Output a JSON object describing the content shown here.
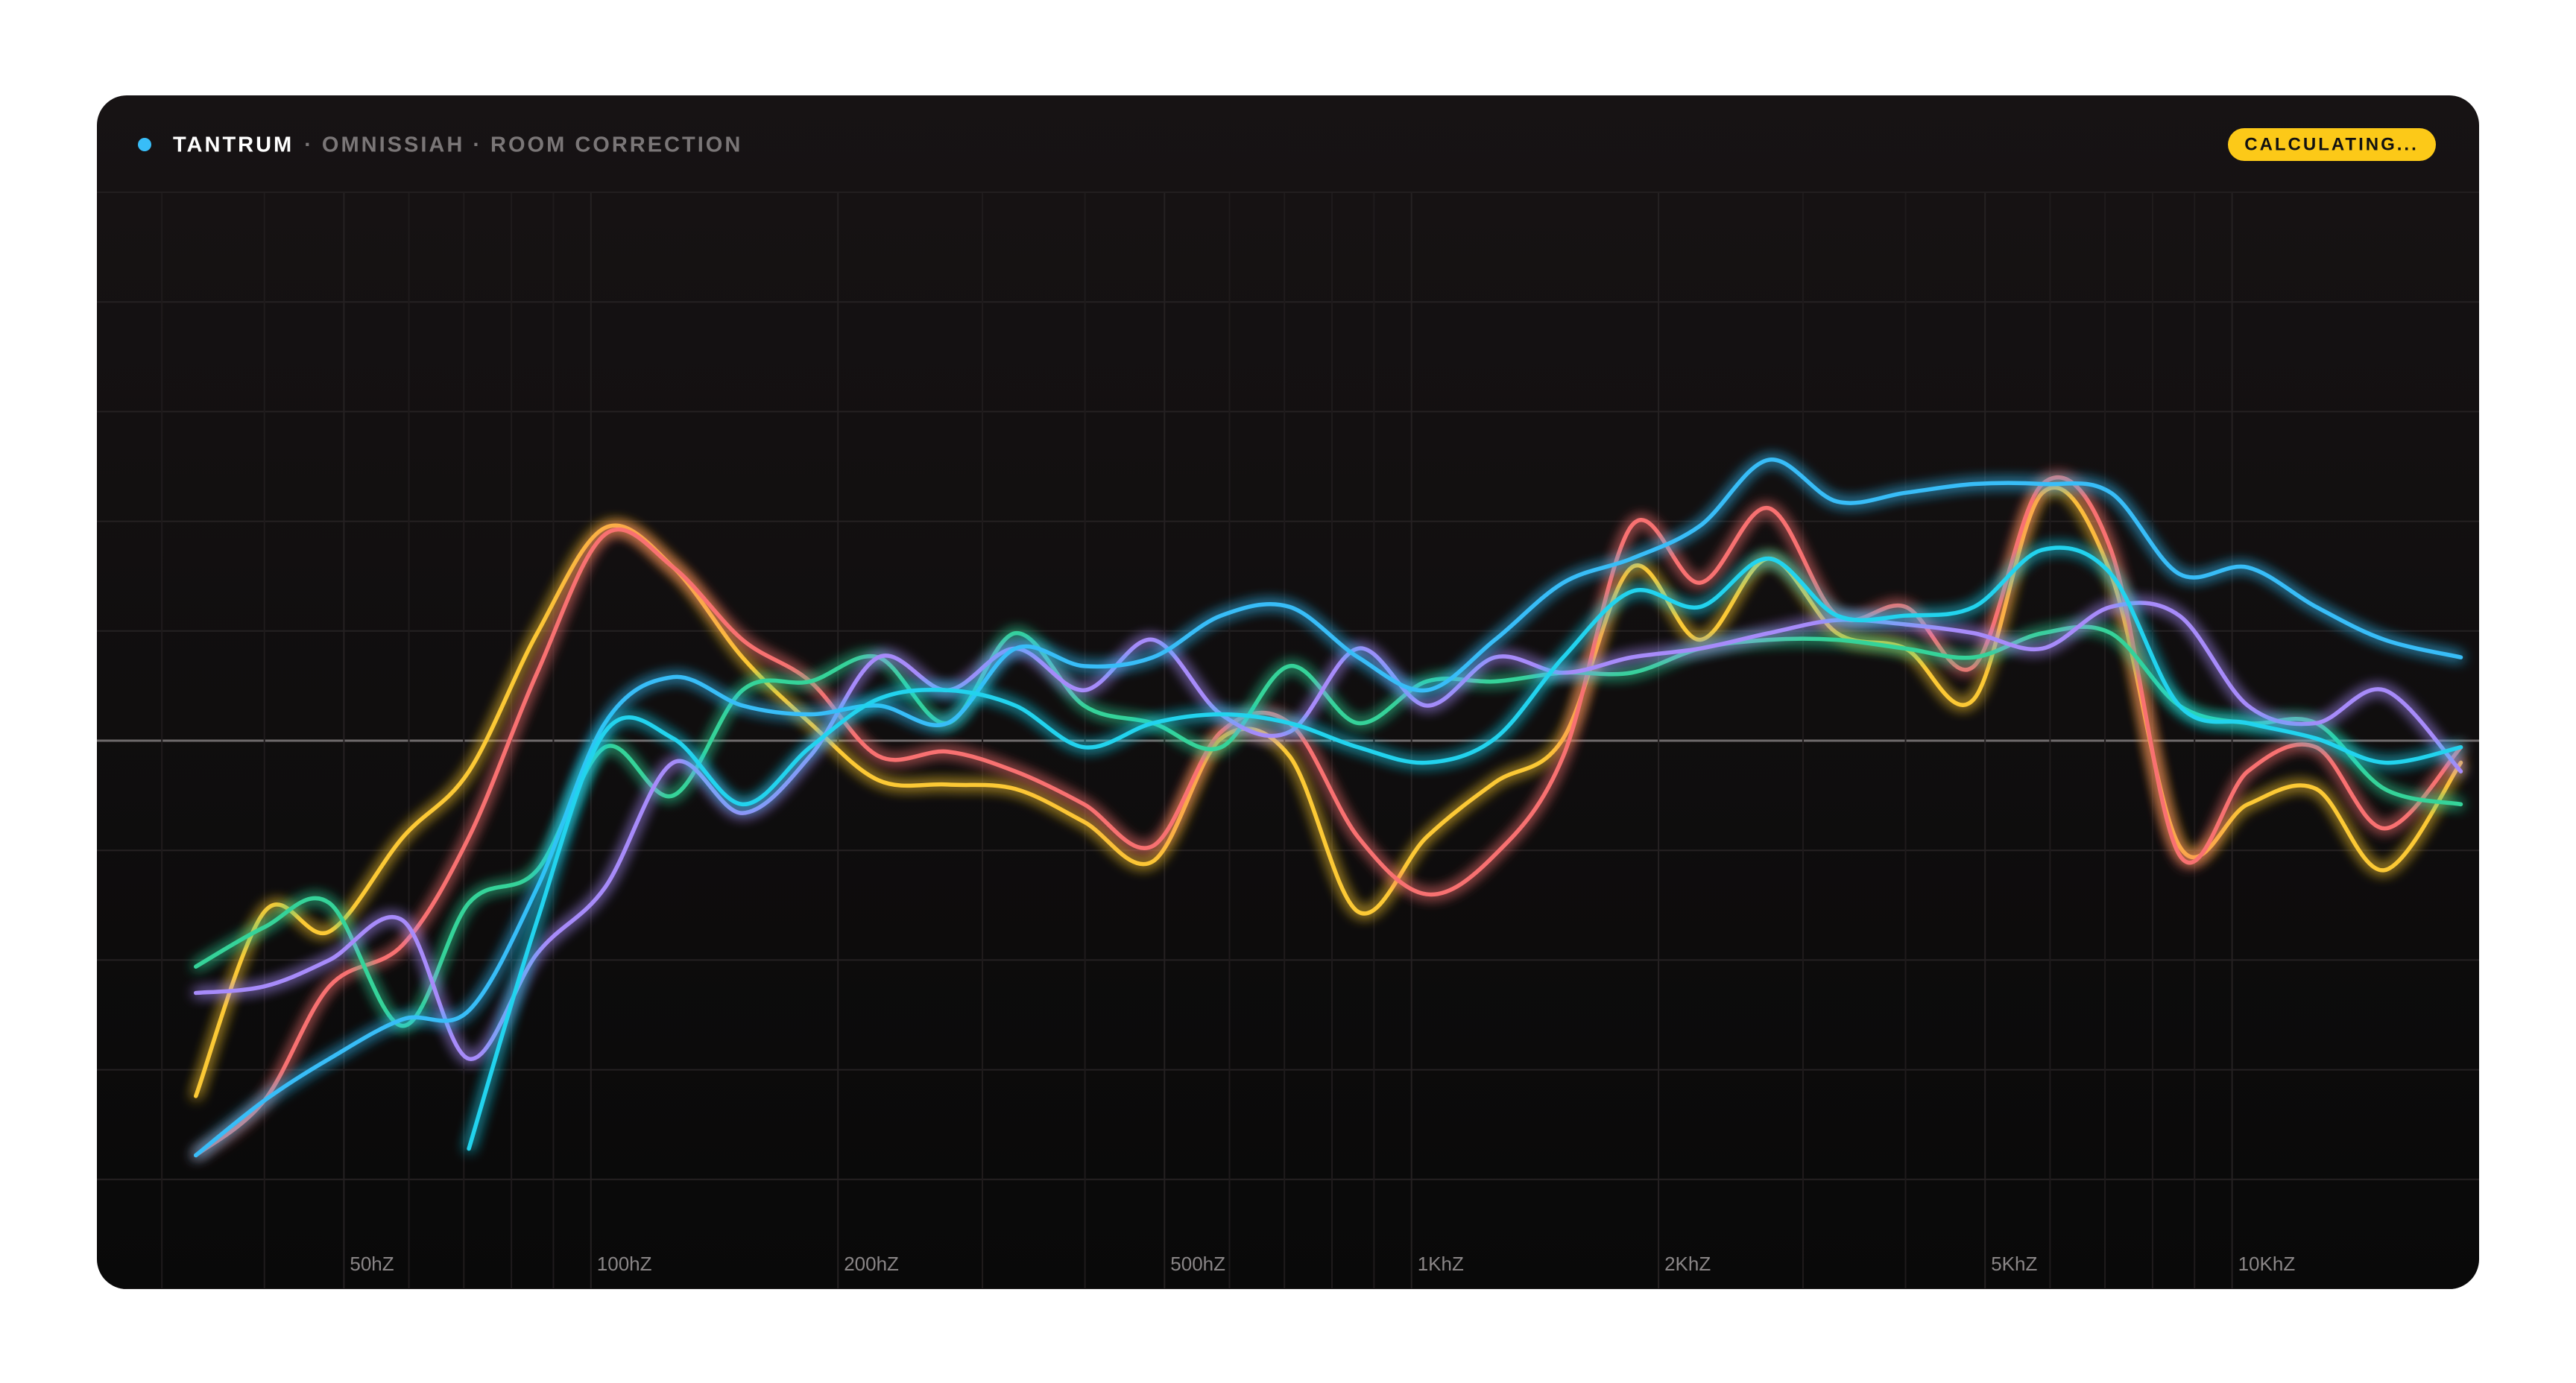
{
  "chart_data": {
    "type": "line",
    "title": "TANTRUM",
    "subtitle": "· OMNISSIAH · ROOM CORRECTION",
    "status": "CALCULATING...",
    "log_x": true,
    "grid": true,
    "zero_line": true,
    "glow": true,
    "xlim": [
      25,
      20000
    ],
    "xticks": [
      {
        "value": 50,
        "label": "50hZ"
      },
      {
        "value": 100,
        "label": "100hZ"
      },
      {
        "value": 200,
        "label": "200hZ"
      },
      {
        "value": 500,
        "label": "500hZ"
      },
      {
        "value": 1000,
        "label": "1KhZ"
      },
      {
        "value": 2000,
        "label": "2KhZ"
      },
      {
        "value": 5000,
        "label": "5KhZ"
      },
      {
        "value": 10000,
        "label": "10KhZ"
      }
    ],
    "x_minor_ticks": [
      30,
      40,
      60,
      70,
      80,
      90,
      300,
      400,
      600,
      700,
      800,
      900,
      3000,
      4000,
      6000,
      7000,
      8000,
      9000
    ],
    "ylim": [
      -25,
      25
    ],
    "yticks": [
      -25,
      -20,
      -15,
      -10,
      -5,
      0,
      5,
      10,
      15,
      20,
      25
    ],
    "x": [
      33,
      40,
      48,
      59,
      71,
      86,
      104,
      126,
      153,
      185,
      224,
      272,
      329,
      399,
      484,
      586,
      710,
      861,
      1043,
      1264,
      1531,
      1855,
      2248,
      2724,
      3301,
      4000,
      4847,
      5873,
      7117,
      8624,
      10450,
      12660,
      15340,
      19000
    ],
    "series": [
      {
        "color": "#fcc934",
        "values": [
          -16.2,
          -7.8,
          -8.7,
          -4.4,
          -1.4,
          4.9,
          9.7,
          7.9,
          3.8,
          0.8,
          -1.8,
          -2.0,
          -2.2,
          -3.7,
          -5.5,
          0.1,
          -0.7,
          -7.8,
          -4.4,
          -1.9,
          0.1,
          7.9,
          4.6,
          8.3,
          4.9,
          4.2,
          1.9,
          11.3,
          7.6,
          -4.8,
          -2.9,
          -2.2,
          -5.9,
          -1.0
        ]
      },
      {
        "color": "#f87171",
        "values": [
          -18.9,
          -16.4,
          -11.2,
          -9.3,
          -4.4,
          3.1,
          9.4,
          7.9,
          4.6,
          2.7,
          -0.7,
          -0.5,
          -1.4,
          -2.9,
          -4.8,
          0.4,
          0.8,
          -4.4,
          -7.0,
          -5.2,
          -0.7,
          9.8,
          7.2,
          10.6,
          5.7,
          6.1,
          3.4,
          11.7,
          8.7,
          -5.2,
          -1.4,
          -0.3,
          -4.0,
          -0.3
        ]
      },
      {
        "color": "#34d399",
        "values": [
          -10.3,
          -8.5,
          -7.4,
          -13.0,
          -7.4,
          -5.9,
          -0.3,
          -2.5,
          2.3,
          2.7,
          3.8,
          0.8,
          4.9,
          1.6,
          0.8,
          -0.3,
          3.4,
          0.8,
          2.7,
          2.7,
          3.1,
          3.1,
          4.2,
          4.6,
          4.6,
          4.2,
          3.8,
          4.9,
          4.9,
          1.6,
          0.8,
          0.8,
          -2.2,
          -2.9
        ]
      },
      {
        "color": "#a78bfa",
        "values": [
          -11.5,
          -11.2,
          -10.0,
          -8.2,
          -14.5,
          -9.7,
          -6.7,
          -1.0,
          -3.3,
          -0.7,
          3.8,
          2.3,
          4.2,
          2.3,
          4.6,
          1.2,
          0.4,
          4.2,
          1.6,
          3.8,
          3.1,
          3.8,
          4.2,
          4.9,
          5.5,
          5.3,
          4.9,
          4.2,
          6.1,
          5.7,
          1.6,
          0.8,
          2.3,
          -1.4
        ]
      },
      {
        "color": "#38bdf8",
        "values": [
          -18.9,
          -16.4,
          -14.5,
          -12.7,
          -12.3,
          -6.7,
          0.8,
          2.9,
          1.6,
          1.2,
          1.6,
          0.8,
          4.2,
          3.4,
          3.8,
          5.7,
          6.1,
          3.8,
          2.3,
          4.6,
          7.2,
          8.3,
          9.8,
          12.8,
          10.9,
          11.3,
          11.7,
          11.7,
          11.3,
          7.6,
          7.9,
          6.1,
          4.6,
          3.8
        ]
      },
      {
        "color": "#22d3ee",
        "values": [
          null,
          null,
          null,
          null,
          -18.6,
          -8.2,
          0.4,
          0.1,
          -2.9,
          -0.3,
          1.9,
          2.3,
          1.6,
          -0.3,
          0.8,
          1.2,
          0.8,
          -0.3,
          -1.0,
          0.1,
          3.8,
          6.8,
          6.1,
          8.3,
          5.7,
          5.7,
          6.1,
          8.7,
          7.6,
          1.6,
          0.8,
          0.1,
          -1.0,
          -0.3
        ]
      }
    ]
  }
}
